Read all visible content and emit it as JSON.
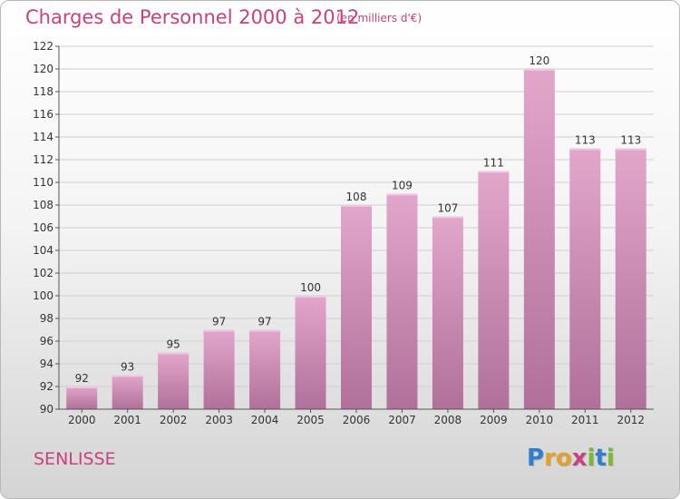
{
  "chart_data": {
    "type": "bar",
    "title": "Charges de Personnel 2000 à 2012",
    "subtitle": "(en milliers d'€)",
    "categories": [
      "2000",
      "2001",
      "2002",
      "2003",
      "2004",
      "2005",
      "2006",
      "2007",
      "2008",
      "2009",
      "2010",
      "2011",
      "2012"
    ],
    "values": [
      92,
      93,
      95,
      97,
      97,
      100,
      108,
      109,
      107,
      111,
      120,
      113,
      113
    ],
    "ylim": [
      90,
      122
    ],
    "yticks": [
      90,
      92,
      94,
      96,
      98,
      100,
      102,
      104,
      106,
      108,
      110,
      112,
      114,
      116,
      118,
      120,
      122
    ],
    "grid": true,
    "legend": "none",
    "bar_color": "#d48bb7"
  },
  "commune": "SENLISSE",
  "logo": {
    "text": "Proxiti",
    "letters": [
      "P",
      "r",
      "o",
      "x",
      "i",
      "t",
      "i"
    ],
    "colors": [
      "#2f7fd0",
      "#e2a12b",
      "#e2a12b",
      "#c8417e",
      "#7ab833",
      "#2f7fd0",
      "#7ab833"
    ]
  },
  "colors": {
    "title": "#c8417e",
    "grid": "#cfcfcf",
    "axis": "#555555"
  }
}
